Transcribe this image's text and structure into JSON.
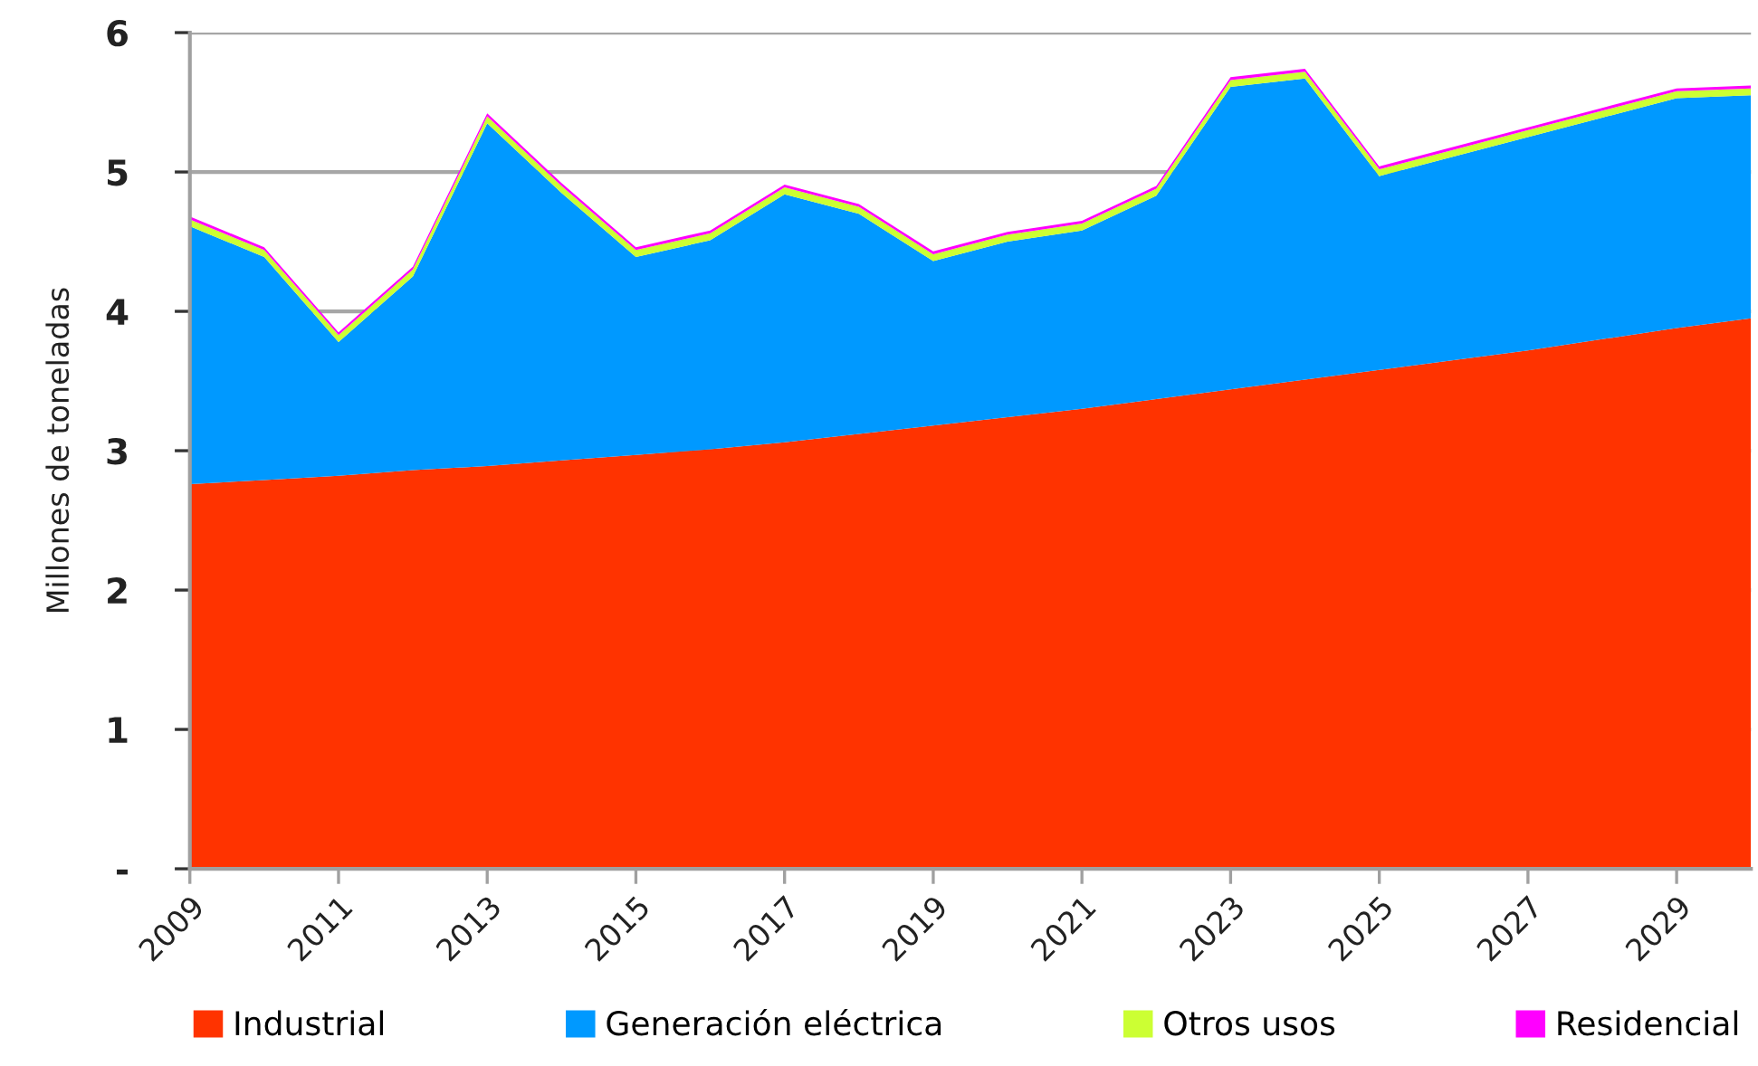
{
  "chart_data": {
    "type": "area",
    "stacked": true,
    "ylabel": "Millones de toneladas",
    "x": [
      2009,
      2010,
      2011,
      2012,
      2013,
      2014,
      2015,
      2016,
      2017,
      2018,
      2019,
      2020,
      2021,
      2022,
      2023,
      2024,
      2025,
      2026,
      2027,
      2028,
      2029,
      2030
    ],
    "series": [
      {
        "name": "Industrial",
        "color": "#ff3300",
        "values": [
          2.76,
          2.79,
          2.82,
          2.86,
          2.89,
          2.93,
          2.97,
          3.01,
          3.06,
          3.12,
          3.18,
          3.24,
          3.3,
          3.37,
          3.44,
          3.51,
          3.58,
          3.65,
          3.72,
          3.8,
          3.88,
          3.95
        ]
      },
      {
        "name": "Generación eléctrica",
        "color": "#0099ff",
        "values": [
          1.85,
          1.6,
          0.96,
          1.39,
          2.46,
          1.92,
          1.42,
          1.5,
          1.78,
          1.58,
          1.18,
          1.26,
          1.28,
          1.46,
          2.17,
          2.16,
          1.39,
          1.46,
          1.53,
          1.59,
          1.65,
          1.6
        ]
      },
      {
        "name": "Otros usos",
        "color": "#ccff33",
        "values": [
          0.05,
          0.05,
          0.05,
          0.05,
          0.05,
          0.05,
          0.05,
          0.05,
          0.05,
          0.05,
          0.05,
          0.05,
          0.05,
          0.05,
          0.05,
          0.05,
          0.05,
          0.05,
          0.05,
          0.05,
          0.05,
          0.05
        ]
      },
      {
        "name": "Residencial",
        "color": "#ff00ff",
        "values": [
          0.02,
          0.02,
          0.02,
          0.02,
          0.02,
          0.02,
          0.02,
          0.02,
          0.02,
          0.02,
          0.02,
          0.02,
          0.02,
          0.02,
          0.02,
          0.02,
          0.02,
          0.02,
          0.02,
          0.02,
          0.02,
          0.02
        ]
      }
    ],
    "xlim": [
      2009,
      2030
    ],
    "xticks": [
      2009,
      2011,
      2013,
      2015,
      2017,
      2019,
      2021,
      2023,
      2025,
      2027,
      2029
    ],
    "ylim": [
      0,
      6
    ],
    "yticks": [
      {
        "value": 0,
        "label": "-"
      },
      1,
      2,
      3,
      4,
      5,
      6
    ],
    "grid": "y",
    "legend": "bottom"
  }
}
